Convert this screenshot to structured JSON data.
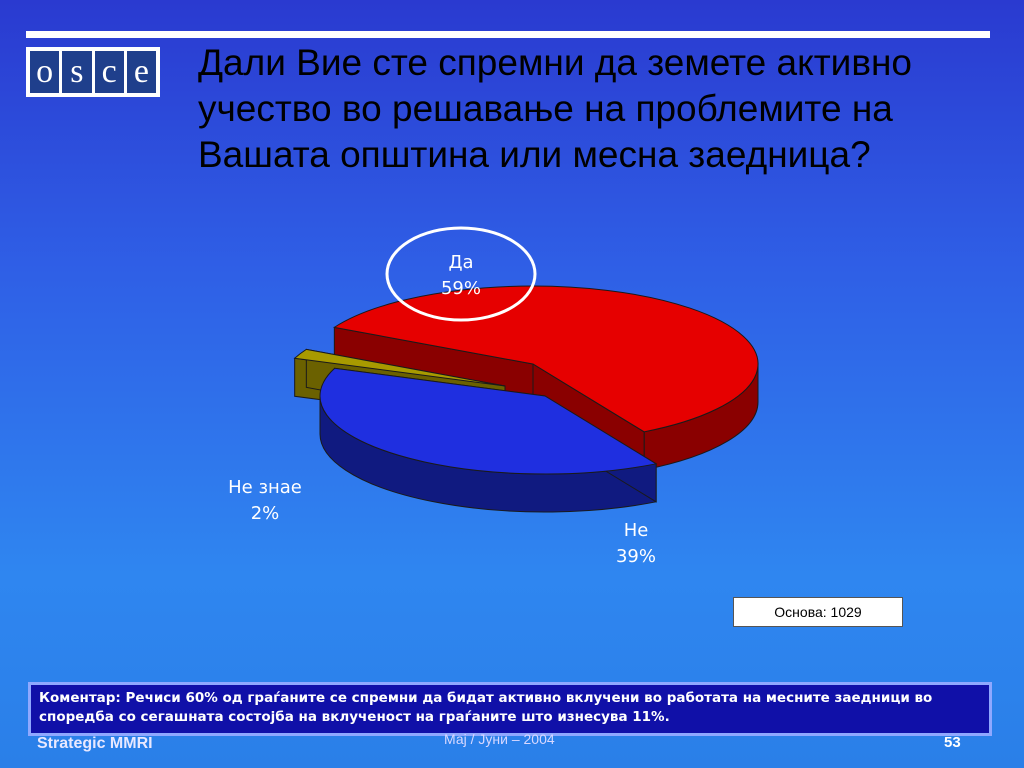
{
  "title": "Дали Вие сте спремни да земете активно учество во решавање на проблемите на Вашата општина или месна заедница?",
  "logo": {
    "letters": [
      "o",
      "s",
      "c",
      "e"
    ]
  },
  "chart_data": {
    "type": "pie",
    "style": "3d-exploded",
    "slices": [
      {
        "label": "Да",
        "value": 59,
        "display": "59%",
        "color": "#e60000",
        "side_color": "#8a0000",
        "highlighted": true
      },
      {
        "label": "Не",
        "value": 39,
        "display": "39%",
        "color": "#1f2fe0",
        "side_color": "#101a80"
      },
      {
        "label": "Не знае",
        "value": 2,
        "display": "2%",
        "color": "#a89a00",
        "side_color": "#6b6100"
      }
    ],
    "title": "",
    "legend": "none"
  },
  "base_note": "Основа: 1029",
  "comment": "Коментар: Речиси 60% од граѓаните се спремни да бидат активно вклучени во работата на месните заедници во споредба со сегашната состојба на вклученост на граѓаните што изнесува 11%.",
  "footer": {
    "left": "Strategic MMRI",
    "center": "Мај / Јуни – 2004",
    "page": "53"
  }
}
